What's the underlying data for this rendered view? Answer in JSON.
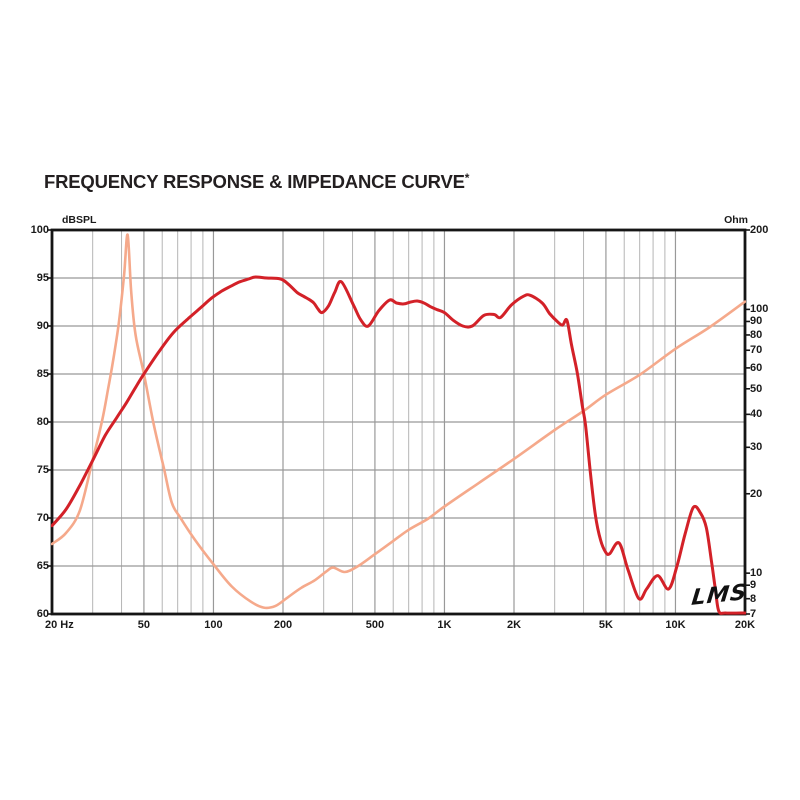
{
  "page": {
    "background": "#ffffff"
  },
  "title": {
    "text": "FREQUENCY RESPONSE & IMPEDANCE CURVE",
    "superscript": "*"
  },
  "chart": {
    "left_axis": {
      "label": "dBSPL",
      "min": 60,
      "max": 100,
      "ticks": [
        "100",
        "95",
        "90",
        "85",
        "80",
        "75",
        "70",
        "65",
        "60"
      ]
    },
    "right_axis": {
      "label": "Ohm",
      "min": 7,
      "max": 200,
      "ticks": [
        "200",
        "100",
        "90",
        "80",
        "70",
        "60",
        "50",
        "40",
        "30",
        "20",
        "10",
        "9",
        "8",
        "7"
      ]
    },
    "x_axis": {
      "unit": "Hz",
      "min": 20,
      "max": 20000,
      "tick_labels": [
        "20 Hz",
        "50",
        "100",
        "200",
        "500",
        "1K",
        "2K",
        "5K",
        "10K",
        "20K"
      ],
      "tick_freqs": [
        20,
        50,
        100,
        200,
        500,
        1000,
        2000,
        5000,
        10000,
        20000
      ],
      "minor_freqs": [
        30,
        40,
        60,
        70,
        80,
        90,
        300,
        400,
        600,
        700,
        800,
        900,
        3000,
        4000,
        6000,
        7000,
        8000,
        9000
      ]
    },
    "h_gridlines_db": [
      95,
      90,
      85,
      80,
      75,
      70,
      65
    ],
    "logo": "LMS",
    "colors": {
      "response": "#d32128",
      "impedance": "#f5a98b",
      "grid_major": "#999999",
      "grid_minor": "#b5b5b5",
      "axis": "#151515"
    }
  },
  "chart_data": {
    "type": "line",
    "title": "FREQUENCY RESPONSE & IMPEDANCE CURVE",
    "x_scale": "log",
    "x_range_hz": [
      20,
      20000
    ],
    "left_ylim_dbspl": [
      60,
      100
    ],
    "right_ylim_ohm_log": [
      7,
      200
    ],
    "grid": true,
    "series": [
      {
        "name": "Frequency response",
        "axis": "left",
        "unit": "dBSPL",
        "color_key": "response",
        "points": [
          [
            20,
            69.2
          ],
          [
            23,
            70.9
          ],
          [
            26.4,
            73.4
          ],
          [
            30,
            76.0
          ],
          [
            34,
            78.6
          ],
          [
            38,
            80.4
          ],
          [
            42,
            82.0
          ],
          [
            46,
            83.6
          ],
          [
            50,
            85.0
          ],
          [
            58,
            87.3
          ],
          [
            67,
            89.3
          ],
          [
            78,
            90.8
          ],
          [
            88,
            91.9
          ],
          [
            98,
            92.9
          ],
          [
            108,
            93.6
          ],
          [
            118,
            94.1
          ],
          [
            130,
            94.6
          ],
          [
            142,
            94.9
          ],
          [
            152,
            95.1
          ],
          [
            170,
            95.0
          ],
          [
            195,
            94.9
          ],
          [
            210,
            94.4
          ],
          [
            230,
            93.5
          ],
          [
            245,
            93.1
          ],
          [
            258,
            92.8
          ],
          [
            272,
            92.4
          ],
          [
            283,
            91.8
          ],
          [
            295,
            91.4
          ],
          [
            315,
            92.1
          ],
          [
            335,
            93.5
          ],
          [
            358,
            94.6
          ],
          [
            405,
            92.1
          ],
          [
            435,
            90.6
          ],
          [
            468,
            90.0
          ],
          [
            520,
            91.6
          ],
          [
            578,
            92.7
          ],
          [
            620,
            92.4
          ],
          [
            667,
            92.3
          ],
          [
            714,
            92.5
          ],
          [
            762,
            92.6
          ],
          [
            815,
            92.4
          ],
          [
            872,
            92.0
          ],
          [
            930,
            91.7
          ],
          [
            1000,
            91.4
          ],
          [
            1090,
            90.6
          ],
          [
            1200,
            90.0
          ],
          [
            1320,
            90.0
          ],
          [
            1480,
            91.1
          ],
          [
            1640,
            91.2
          ],
          [
            1750,
            90.9
          ],
          [
            1950,
            92.2
          ],
          [
            2200,
            93.1
          ],
          [
            2350,
            93.2
          ],
          [
            2650,
            92.4
          ],
          [
            2850,
            91.3
          ],
          [
            3100,
            90.4
          ],
          [
            3250,
            90.1
          ],
          [
            3390,
            90.6
          ],
          [
            3550,
            88.0
          ],
          [
            3760,
            85.1
          ],
          [
            3950,
            81.7
          ],
          [
            4080,
            79.7
          ],
          [
            4270,
            75.0
          ],
          [
            4500,
            70.3
          ],
          [
            4740,
            67.7
          ],
          [
            5000,
            66.4
          ],
          [
            5200,
            66.3
          ],
          [
            5700,
            67.4
          ],
          [
            6230,
            64.6
          ],
          [
            6940,
            61.6
          ],
          [
            7500,
            62.6
          ],
          [
            8370,
            64.0
          ],
          [
            9340,
            62.6
          ],
          [
            10150,
            65.0
          ],
          [
            11000,
            68.3
          ],
          [
            11950,
            71.1
          ],
          [
            12850,
            70.5
          ],
          [
            13600,
            69.0
          ],
          [
            14300,
            65.6
          ],
          [
            14900,
            62.5
          ],
          [
            15400,
            60.3
          ],
          [
            16500,
            60.1
          ],
          [
            20000,
            60.1
          ]
        ]
      },
      {
        "name": "Impedance",
        "axis": "right",
        "unit": "Ohm",
        "y_scale": "log",
        "color_key": "impedance",
        "points": [
          [
            20,
            12.9
          ],
          [
            23,
            14.2
          ],
          [
            26.4,
            17.3
          ],
          [
            30,
            26.9
          ],
          [
            33,
            38
          ],
          [
            35,
            50
          ],
          [
            37,
            66
          ],
          [
            39,
            90
          ],
          [
            41,
            134
          ],
          [
            42.5,
            192
          ],
          [
            44,
            118
          ],
          [
            46,
            80
          ],
          [
            50,
            57
          ],
          [
            55,
            37
          ],
          [
            61,
            25
          ],
          [
            66,
            18.5
          ],
          [
            72,
            16.2
          ],
          [
            83,
            13.4
          ],
          [
            100,
            10.8
          ],
          [
            120,
            8.9
          ],
          [
            145,
            7.8
          ],
          [
            165,
            7.4
          ],
          [
            185,
            7.5
          ],
          [
            210,
            8.1
          ],
          [
            240,
            8.8
          ],
          [
            275,
            9.4
          ],
          [
            310,
            10.2
          ],
          [
            330,
            10.5
          ],
          [
            370,
            10.1
          ],
          [
            420,
            10.6
          ],
          [
            500,
            11.8
          ],
          [
            590,
            13.1
          ],
          [
            700,
            14.6
          ],
          [
            850,
            16.1
          ],
          [
            1000,
            17.9
          ],
          [
            1400,
            21.9
          ],
          [
            2000,
            27.1
          ],
          [
            3000,
            34.9
          ],
          [
            4000,
            41.2
          ],
          [
            5000,
            47.5
          ],
          [
            7000,
            56.5
          ],
          [
            10000,
            70.9
          ],
          [
            14000,
            85.4
          ],
          [
            20000,
            107
          ]
        ]
      }
    ]
  }
}
